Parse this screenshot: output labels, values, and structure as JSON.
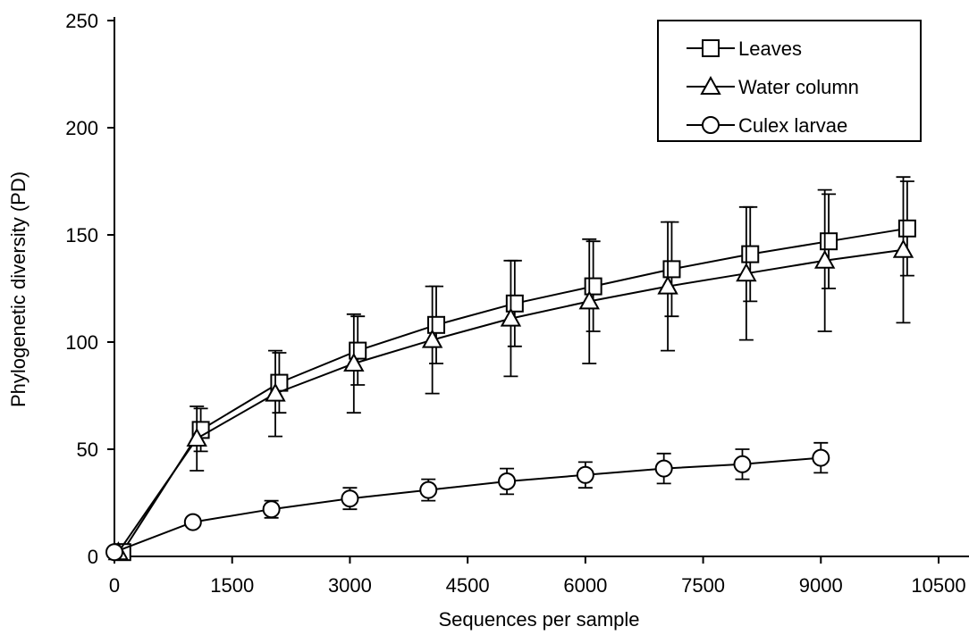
{
  "chart_data": {
    "type": "line",
    "xlabel": "Sequences per sample",
    "ylabel": "Phylogenetic diversity (PD)",
    "xlim": [
      0,
      10500
    ],
    "ylim": [
      0,
      250
    ],
    "xticks": [
      0,
      1500,
      3000,
      4500,
      6000,
      7500,
      9000,
      10500
    ],
    "yticks": [
      0,
      50,
      100,
      150,
      200,
      250
    ],
    "grid": false,
    "legend_position": "top-right",
    "series": [
      {
        "name": "Leaves",
        "marker": "square",
        "x": [
          100,
          1100,
          2100,
          3100,
          4100,
          5100,
          6100,
          7100,
          8100,
          9100,
          10100
        ],
        "y": [
          2,
          59,
          81,
          96,
          108,
          118,
          126,
          134,
          141,
          147,
          153
        ],
        "err": [
          0,
          10,
          14,
          16,
          18,
          20,
          21,
          22,
          22,
          22,
          22
        ]
      },
      {
        "name": "Water column",
        "marker": "triangle",
        "x": [
          50,
          1050,
          2050,
          3050,
          4050,
          5050,
          6050,
          7050,
          8050,
          9050,
          10050
        ],
        "y": [
          2,
          55,
          76,
          90,
          101,
          111,
          119,
          126,
          132,
          138,
          143
        ],
        "err": [
          0,
          15,
          20,
          23,
          25,
          27,
          29,
          30,
          31,
          33,
          34
        ]
      },
      {
        "name": "Culex larvae",
        "marker": "circle",
        "x": [
          0,
          1000,
          2000,
          3000,
          4000,
          5000,
          6000,
          7000,
          8000,
          9000
        ],
        "y": [
          2,
          16,
          22,
          27,
          31,
          35,
          38,
          41,
          43,
          46
        ],
        "err": [
          0,
          0,
          4,
          5,
          5,
          6,
          6,
          7,
          7,
          7
        ]
      }
    ]
  }
}
